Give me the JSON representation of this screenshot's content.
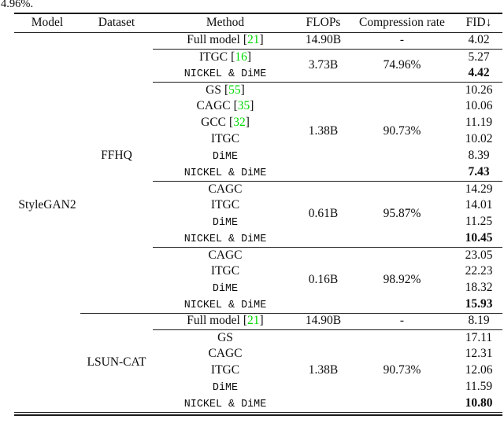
{
  "caption_fragment": "4.96%.",
  "colors": {
    "citation_green": "#00d800",
    "rule": "#1c1c1c",
    "text": "#0d0d0d",
    "background": "#ffffff"
  },
  "table": {
    "columns": [
      "Model",
      "Dataset",
      "Method",
      "FLOPs",
      "Compression rate",
      "FID↓"
    ],
    "model": "StyleGAN2",
    "cite_brackets": [
      "[",
      "]"
    ],
    "datasets": [
      {
        "label": "FFHQ",
        "rowspan": 17
      },
      {
        "label": "LSUN-CAT",
        "rowspan": 6
      }
    ],
    "groups": [
      {
        "dataset_index": 0,
        "flops": "14.90B",
        "compression": "-",
        "separator": "none",
        "methods": [
          {
            "name": "Full model",
            "cite": "21",
            "mono": false,
            "fid": "4.02",
            "bold": false
          }
        ]
      },
      {
        "dataset_index": 0,
        "flops": "3.73B",
        "compression": "74.96%",
        "separator": "methods",
        "methods": [
          {
            "name": "ITGC",
            "cite": "16",
            "mono": false,
            "fid": "5.27",
            "bold": false
          },
          {
            "name": "NICKEL & DiME",
            "mono": true,
            "fid": "4.42",
            "bold": true
          }
        ]
      },
      {
        "dataset_index": 0,
        "flops": "1.38B",
        "compression": "90.73%",
        "separator": "methods",
        "methods": [
          {
            "name": "GS",
            "cite": "55",
            "mono": false,
            "fid": "10.26",
            "bold": false
          },
          {
            "name": "CAGC",
            "cite": "35",
            "mono": false,
            "fid": "10.06",
            "bold": false
          },
          {
            "name": "GCC",
            "cite": "32",
            "mono": false,
            "fid": "11.19",
            "bold": false
          },
          {
            "name": "ITGC",
            "mono": false,
            "fid": "10.02",
            "bold": false
          },
          {
            "name": "DiME",
            "mono": true,
            "fid": "8.39",
            "bold": false
          },
          {
            "name": "NICKEL & DiME",
            "mono": true,
            "fid": "7.43",
            "bold": true
          }
        ]
      },
      {
        "dataset_index": 0,
        "flops": "0.61B",
        "compression": "95.87%",
        "separator": "methods",
        "methods": [
          {
            "name": "CAGC",
            "mono": false,
            "fid": "14.29",
            "bold": false
          },
          {
            "name": "ITGC",
            "mono": false,
            "fid": "14.01",
            "bold": false
          },
          {
            "name": "DiME",
            "mono": true,
            "fid": "11.25",
            "bold": false
          },
          {
            "name": "NICKEL & DiME",
            "mono": true,
            "fid": "10.45",
            "bold": true
          }
        ]
      },
      {
        "dataset_index": 0,
        "flops": "0.16B",
        "compression": "98.92%",
        "separator": "methods",
        "methods": [
          {
            "name": "CAGC",
            "mono": false,
            "fid": "23.05",
            "bold": false
          },
          {
            "name": "ITGC",
            "mono": false,
            "fid": "22.23",
            "bold": false
          },
          {
            "name": "DiME",
            "mono": true,
            "fid": "18.32",
            "bold": false
          },
          {
            "name": "NICKEL & DiME",
            "mono": true,
            "fid": "15.93",
            "bold": true
          }
        ]
      },
      {
        "dataset_index": 1,
        "flops": "14.90B",
        "compression": "-",
        "separator": "dataset",
        "methods": [
          {
            "name": "Full model",
            "cite": "21",
            "mono": false,
            "fid": "8.19",
            "bold": false
          }
        ]
      },
      {
        "dataset_index": 1,
        "flops": "1.38B",
        "compression": "90.73%",
        "separator": "methods",
        "methods": [
          {
            "name": "GS",
            "mono": false,
            "fid": "17.11",
            "bold": false
          },
          {
            "name": "CAGC",
            "mono": false,
            "fid": "12.31",
            "bold": false
          },
          {
            "name": "ITGC",
            "mono": false,
            "fid": "12.06",
            "bold": false
          },
          {
            "name": "DiME",
            "mono": true,
            "fid": "11.59",
            "bold": false
          },
          {
            "name": "NICKEL & DiME",
            "mono": true,
            "fid": "10.80",
            "bold": true
          }
        ]
      }
    ]
  }
}
